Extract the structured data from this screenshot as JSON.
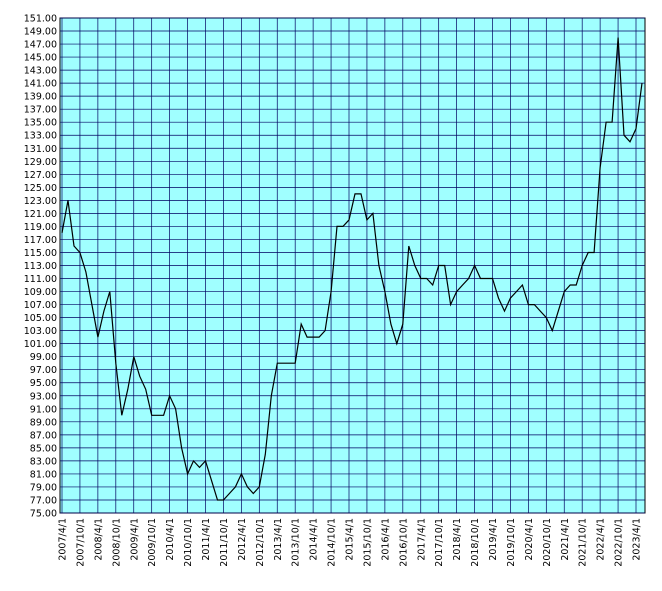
{
  "chart_data": {
    "type": "line",
    "color": "#000000",
    "background": "#a0ffff",
    "grid": true,
    "categories": [
      "2007/4/1",
      null,
      null,
      "2007/10/1",
      null,
      null,
      "2008/4/1",
      null,
      null,
      "2008/10/1",
      null,
      null,
      "2009/4/1",
      null,
      null,
      "2009/10/1",
      null,
      null,
      "2010/4/1",
      null,
      null,
      "2010/10/1",
      null,
      null,
      "2011/4/1",
      null,
      null,
      "2011/10/1",
      null,
      null,
      "2012/4/1",
      null,
      null,
      "2012/10/1",
      null,
      null,
      "2013/4/1",
      null,
      null,
      "2013/10/1",
      null,
      null,
      "2014/4/1",
      null,
      null,
      "2014/10/1",
      null,
      null,
      "2015/4/1",
      null,
      null,
      "2015/10/1",
      null,
      null,
      "2016/4/1",
      null,
      null,
      "2016/10/1",
      null,
      null,
      "2017/4/1",
      null,
      null,
      "2017/10/1",
      null,
      null,
      "2018/4/1",
      null,
      null,
      "2018/10/1",
      null,
      null,
      "2019/4/1",
      null,
      null,
      "2019/10/1",
      null,
      null,
      "2020/4/1",
      null,
      null,
      "2020/10/1",
      null,
      null,
      "2021/4/1",
      null,
      null,
      "2021/10/1",
      null,
      null,
      "2022/4/1",
      null,
      null,
      "2022/10/1",
      null,
      null,
      "2023/4/1",
      null
    ],
    "values": [
      118,
      123,
      116,
      115,
      112,
      107,
      102,
      106,
      109,
      98,
      90,
      94,
      99,
      96,
      94,
      90,
      90,
      90,
      93,
      91,
      85,
      81,
      83,
      82,
      83,
      80,
      77,
      77,
      78,
      79,
      81,
      79,
      78,
      79,
      84,
      93,
      98,
      98,
      98,
      98,
      104,
      102,
      102,
      102,
      103,
      109,
      119,
      119,
      120,
      124,
      124,
      120,
      121,
      113,
      109,
      104,
      101,
      104,
      116,
      113,
      111,
      111,
      110,
      113,
      113,
      107,
      109,
      110,
      111,
      113,
      111,
      111,
      111,
      108,
      106,
      108,
      109,
      110,
      107,
      107,
      106,
      105,
      103,
      106,
      109,
      110,
      110,
      113,
      115,
      115,
      128,
      135,
      135,
      148,
      133,
      132,
      134,
      141
    ],
    "ylim": [
      75,
      151
    ],
    "yticks": [
      {
        "value": 75,
        "label": "75.00"
      },
      {
        "value": 77,
        "label": "77.00"
      },
      {
        "value": 79,
        "label": "79.00"
      },
      {
        "value": 81,
        "label": "81.00"
      },
      {
        "value": 83,
        "label": "83.00"
      },
      {
        "value": 85,
        "label": "85.00"
      },
      {
        "value": 87,
        "label": "87.00"
      },
      {
        "value": 89,
        "label": "89.00"
      },
      {
        "value": 91,
        "label": "91.00"
      },
      {
        "value": 93,
        "label": "93.00"
      },
      {
        "value": 95,
        "label": "95.00"
      },
      {
        "value": 97,
        "label": "97.00"
      },
      {
        "value": 99,
        "label": "99.00"
      },
      {
        "value": 101,
        "label": "101.00"
      },
      {
        "value": 103,
        "label": "103.00"
      },
      {
        "value": 105,
        "label": "105.00"
      },
      {
        "value": 107,
        "label": "107.00"
      },
      {
        "value": 109,
        "label": "109.00"
      },
      {
        "value": 111,
        "label": "111.00"
      },
      {
        "value": 113,
        "label": "113.00"
      },
      {
        "value": 115,
        "label": "115.00"
      },
      {
        "value": 117,
        "label": "117.00"
      },
      {
        "value": 119,
        "label": "119.00"
      },
      {
        "value": 121,
        "label": "121.00"
      },
      {
        "value": 123,
        "label": "123.00"
      },
      {
        "value": 125,
        "label": "125.00"
      },
      {
        "value": 127,
        "label": "127.00"
      },
      {
        "value": 129,
        "label": "129.00"
      },
      {
        "value": 131,
        "label": "131.00"
      },
      {
        "value": 133,
        "label": "133.00"
      },
      {
        "value": 135,
        "label": "135.00"
      },
      {
        "value": 137,
        "label": "137.00"
      },
      {
        "value": 139,
        "label": "139.00"
      },
      {
        "value": 141,
        "label": "141.00"
      },
      {
        "value": 143,
        "label": "143.00"
      },
      {
        "value": 145,
        "label": "145.00"
      },
      {
        "value": 147,
        "label": "147.00"
      },
      {
        "value": 149,
        "label": "149.00"
      },
      {
        "value": 151,
        "label": "151.00"
      }
    ]
  }
}
